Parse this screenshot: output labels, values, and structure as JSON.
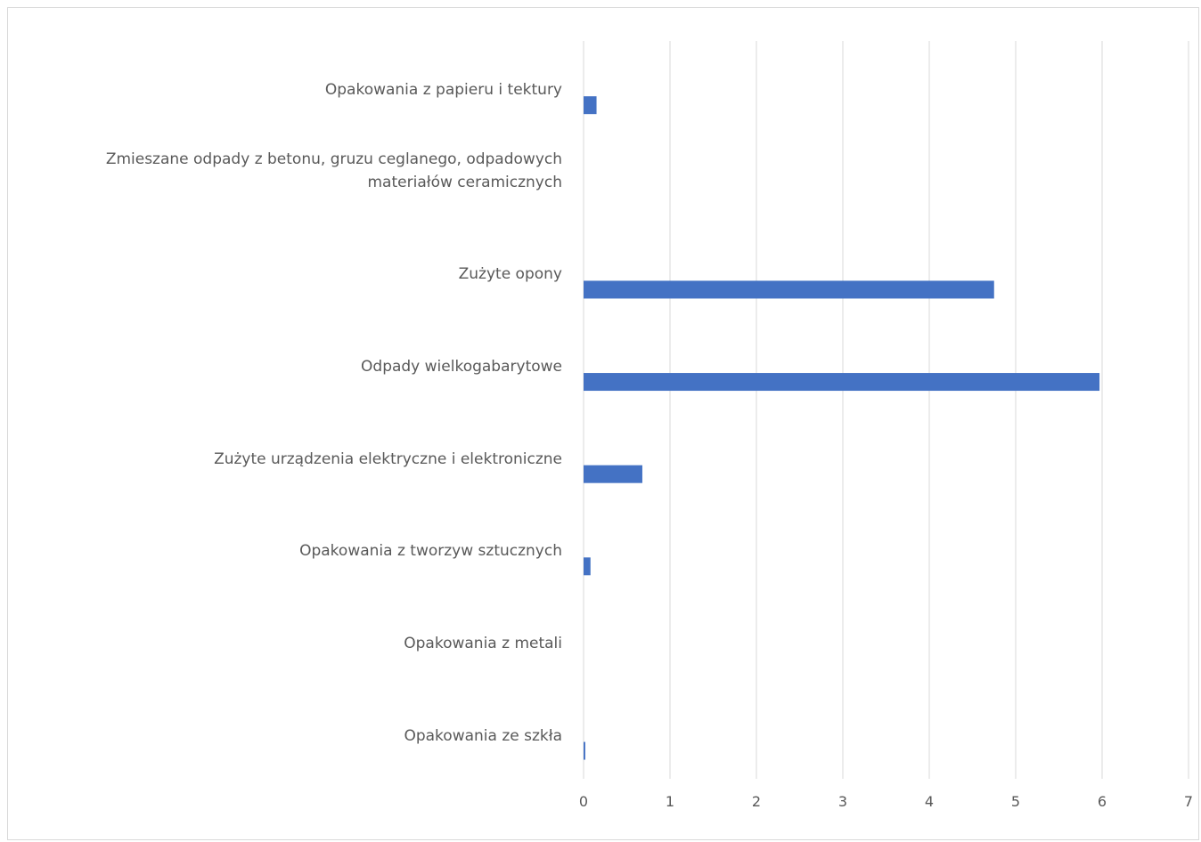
{
  "chart_data": {
    "type": "bar",
    "orientation": "horizontal",
    "categories": [
      "Opakowania z papieru i tektury",
      "Zmieszane odpady z betonu, gruzu ceglanego, odpadowych materiałów ceramicznych",
      "Zużyte opony",
      "Odpady wielkogabarytowe",
      "Zużyte urządzenia elektryczne i elektroniczne",
      "Opakowania z tworzyw sztucznych",
      "Opakowania z metali",
      "Opakowania ze szkła"
    ],
    "values": [
      0.15,
      0,
      4.75,
      5.97,
      0.68,
      0.08,
      0,
      0.02
    ],
    "xlim": [
      0,
      7
    ],
    "ticks": [
      "0",
      "1",
      "2",
      "3",
      "4",
      "5",
      "6",
      "7"
    ],
    "grid": true,
    "bar_color": "#4472c4",
    "grid_color": "#d9d9d9",
    "title": "",
    "xlabel": "",
    "ylabel": ""
  }
}
